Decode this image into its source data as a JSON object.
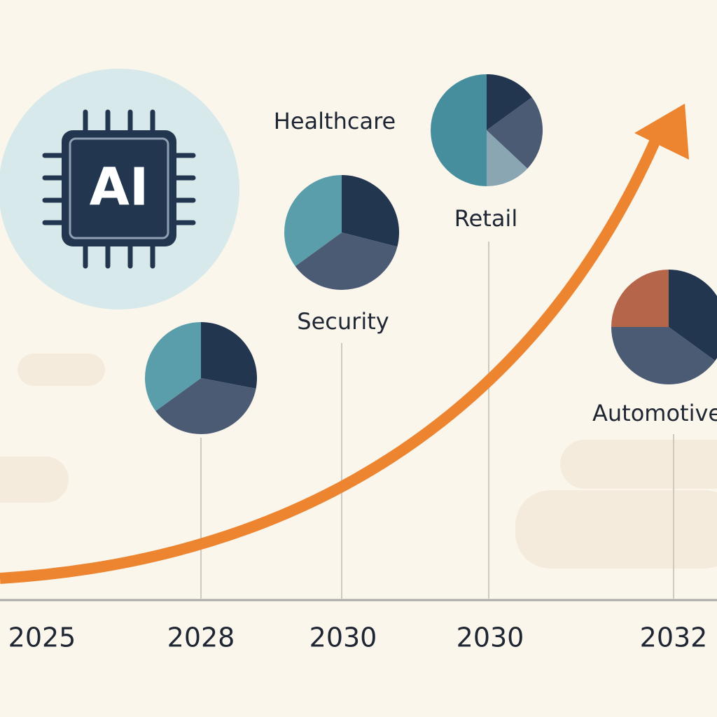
{
  "badge": "AI",
  "labels": [
    "Healthcare",
    "Retail",
    "Security",
    "Automotive"
  ],
  "timeline": [
    "2025",
    "2028",
    "2030",
    "2030",
    "2032"
  ],
  "pies": [
    {
      "values": [
        28,
        37,
        35
      ],
      "colors": [
        "#23364f",
        "#4a5b73",
        "#5a9eab"
      ]
    },
    {
      "values": [
        29,
        36,
        35
      ],
      "colors": [
        "#23364f",
        "#4a5b73",
        "#5a9eab"
      ]
    },
    {
      "values": [
        15,
        22,
        13,
        50
      ],
      "colors": [
        "#23364f",
        "#4a5b73",
        "#8aa6b3",
        "#468e9e"
      ]
    },
    {
      "values": [
        35,
        40,
        25
      ],
      "colors": [
        "#23364f",
        "#4a5b73",
        "#b5654a"
      ]
    }
  ]
}
